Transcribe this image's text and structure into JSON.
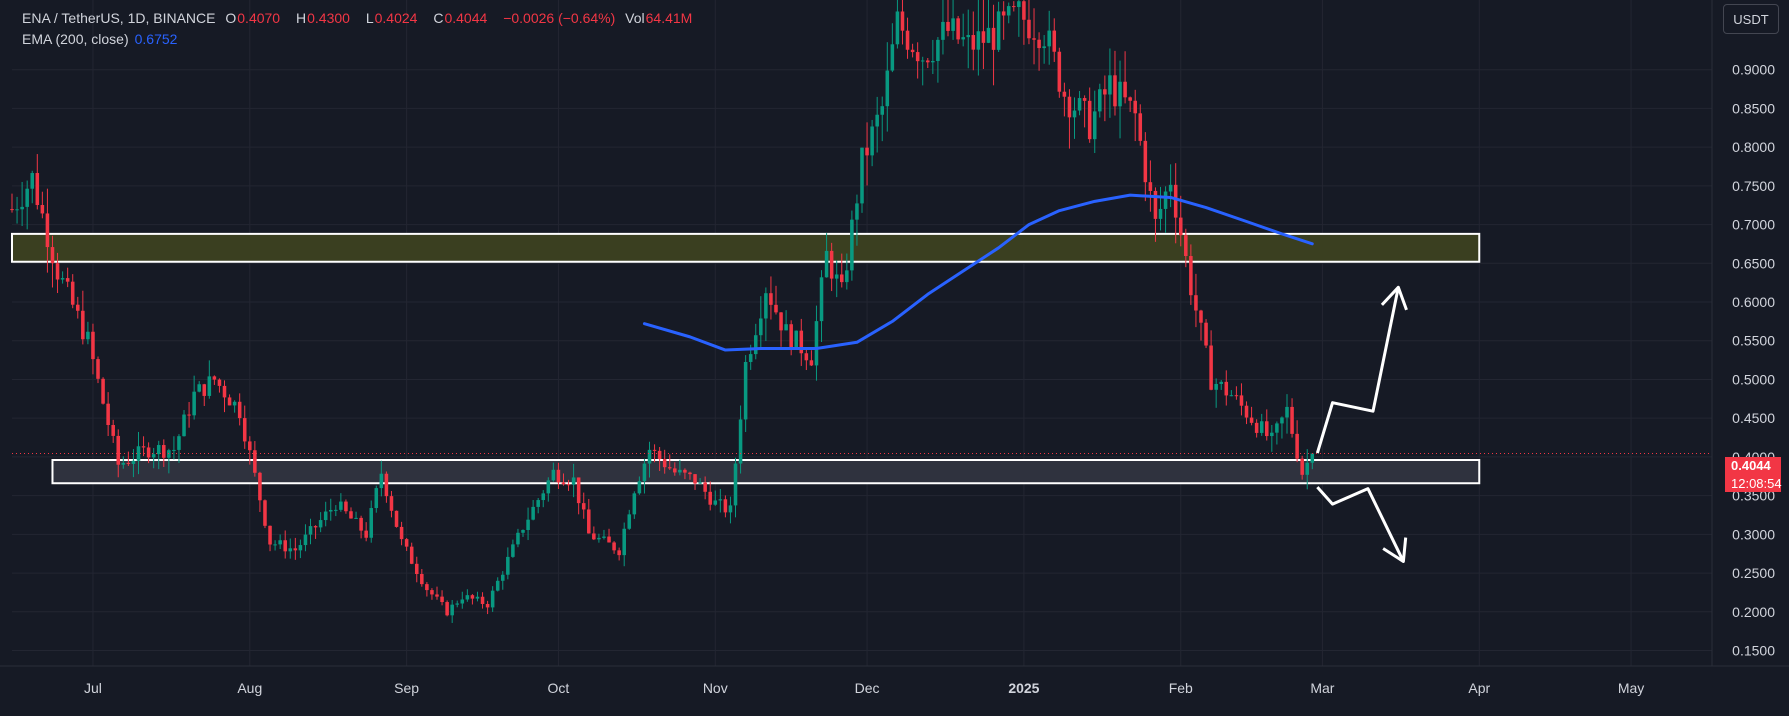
{
  "header": {
    "symbol": "ENA / TetherUS, 1D, BINANCE",
    "o_label": "O",
    "o_val": "0.4070",
    "h_label": "H",
    "h_val": "0.4300",
    "l_label": "L",
    "l_val": "0.4024",
    "c_label": "C",
    "c_val": "0.4044",
    "change": "−0.0026 (−0.64%)",
    "vol_label": "Vol",
    "vol_val": "64.41M",
    "ema_label": "EMA (200, close)",
    "ema_val": "0.6752"
  },
  "currency_button": "USDT",
  "last_price": {
    "price": "0.4044",
    "countdown": "12:08:54"
  },
  "colors": {
    "up": "#089981",
    "down": "#f23645",
    "ema": "#2962ff",
    "bg": "#161a25",
    "grid": "#232632"
  },
  "chart_data": {
    "type": "candlestick",
    "y_ticks": [
      "0.9000",
      "0.8500",
      "0.8000",
      "0.7500",
      "0.7000",
      "0.6500",
      "0.6000",
      "0.5500",
      "0.5000",
      "0.4500",
      "0.4000",
      "0.3500",
      "0.3000",
      "0.2500",
      "0.2000",
      "0.1500"
    ],
    "y_range": [
      0.13,
      0.99
    ],
    "x_ticks": [
      {
        "label": "Jul",
        "date": "2024-07-01",
        "bold": false
      },
      {
        "label": "Aug",
        "date": "2024-08-01",
        "bold": false
      },
      {
        "label": "Sep",
        "date": "2024-09-01",
        "bold": false
      },
      {
        "label": "Oct",
        "date": "2024-10-01",
        "bold": false
      },
      {
        "label": "Nov",
        "date": "2024-11-01",
        "bold": false
      },
      {
        "label": "Dec",
        "date": "2024-12-01",
        "bold": false
      },
      {
        "label": "2025",
        "date": "2025-01-01",
        "bold": true
      },
      {
        "label": "Feb",
        "date": "2025-02-01",
        "bold": false
      },
      {
        "label": "Mar",
        "date": "2025-03-01",
        "bold": false
      },
      {
        "label": "Apr",
        "date": "2025-04-01",
        "bold": false
      },
      {
        "label": "May",
        "date": "2025-05-01",
        "bold": false
      }
    ],
    "x_range": [
      "2024-06-15",
      "2025-05-17"
    ],
    "close_keypoints": [
      [
        "2024-06-15",
        0.72
      ],
      [
        "2024-06-19",
        0.76
      ],
      [
        "2024-06-24",
        0.64
      ],
      [
        "2024-06-30",
        0.55
      ],
      [
        "2024-07-03",
        0.47
      ],
      [
        "2024-07-06",
        0.39
      ],
      [
        "2024-07-12",
        0.41
      ],
      [
        "2024-07-17",
        0.41
      ],
      [
        "2024-07-21",
        0.48
      ],
      [
        "2024-07-25",
        0.5
      ],
      [
        "2024-07-30",
        0.46
      ],
      [
        "2024-08-05",
        0.29
      ],
      [
        "2024-08-10",
        0.28
      ],
      [
        "2024-08-18",
        0.34
      ],
      [
        "2024-08-24",
        0.3
      ],
      [
        "2024-08-27",
        0.38
      ],
      [
        "2024-08-31",
        0.29
      ],
      [
        "2024-09-05",
        0.23
      ],
      [
        "2024-09-09",
        0.2
      ],
      [
        "2024-09-12",
        0.22
      ],
      [
        "2024-09-17",
        0.21
      ],
      [
        "2024-09-24",
        0.31
      ],
      [
        "2024-09-30",
        0.38
      ],
      [
        "2024-10-04",
        0.37
      ],
      [
        "2024-10-07",
        0.3
      ],
      [
        "2024-10-13",
        0.28
      ],
      [
        "2024-10-16",
        0.36
      ],
      [
        "2024-10-19",
        0.41
      ],
      [
        "2024-10-24",
        0.38
      ],
      [
        "2024-10-28",
        0.37
      ],
      [
        "2024-11-01",
        0.34
      ],
      [
        "2024-11-04",
        0.33
      ],
      [
        "2024-11-07",
        0.52
      ],
      [
        "2024-11-11",
        0.62
      ],
      [
        "2024-11-15",
        0.56
      ],
      [
        "2024-11-20",
        0.53
      ],
      [
        "2024-11-23",
        0.66
      ],
      [
        "2024-11-26",
        0.61
      ],
      [
        "2024-11-30",
        0.78
      ],
      [
        "2024-12-04",
        0.85
      ],
      [
        "2024-12-07",
        0.96
      ],
      [
        "2024-12-12",
        0.92
      ],
      [
        "2024-12-17",
        0.95
      ],
      [
        "2024-12-21",
        0.93
      ],
      [
        "2024-12-27",
        0.95
      ],
      [
        "2024-12-31",
        0.97
      ],
      [
        "2025-01-05",
        0.95
      ],
      [
        "2025-01-09",
        0.87
      ],
      [
        "2025-01-14",
        0.83
      ],
      [
        "2025-01-18",
        0.88
      ],
      [
        "2025-01-23",
        0.84
      ],
      [
        "2025-01-27",
        0.7
      ],
      [
        "2025-01-30",
        0.76
      ],
      [
        "2025-02-03",
        0.62
      ],
      [
        "2025-02-07",
        0.5
      ],
      [
        "2025-02-11",
        0.48
      ],
      [
        "2025-02-15",
        0.45
      ],
      [
        "2025-02-19",
        0.42
      ],
      [
        "2025-02-22",
        0.46
      ],
      [
        "2025-02-25",
        0.38
      ],
      [
        "2025-02-27",
        0.4044
      ]
    ],
    "ema_200": [
      [
        "2024-10-18",
        0.572
      ],
      [
        "2024-10-27",
        0.555
      ],
      [
        "2024-11-03",
        0.538
      ],
      [
        "2024-11-10",
        0.54
      ],
      [
        "2024-11-21",
        0.54
      ],
      [
        "2024-11-29",
        0.548
      ],
      [
        "2024-12-06",
        0.575
      ],
      [
        "2024-12-13",
        0.61
      ],
      [
        "2024-12-20",
        0.64
      ],
      [
        "2024-12-27",
        0.67
      ],
      [
        "2025-01-02",
        0.7
      ],
      [
        "2025-01-08",
        0.718
      ],
      [
        "2025-01-15",
        0.73
      ],
      [
        "2025-01-22",
        0.738
      ],
      [
        "2025-01-30",
        0.735
      ],
      [
        "2025-02-06",
        0.722
      ],
      [
        "2025-02-14",
        0.704
      ],
      [
        "2025-02-21",
        0.688
      ],
      [
        "2025-02-27",
        0.6752
      ]
    ],
    "zones": [
      {
        "from": "2024-06-15",
        "to": "2025-04-01",
        "low": 0.652,
        "high": 0.688,
        "fill": "#3a3f20"
      },
      {
        "from": "2024-06-23",
        "to": "2025-04-01",
        "low": 0.366,
        "high": 0.396,
        "fill": "#2f323e"
      }
    ],
    "projection_up": [
      [
        "2025-02-28",
        0.405
      ],
      [
        "2025-03-03",
        0.47
      ],
      [
        "2025-03-11",
        0.459
      ],
      [
        "2025-03-16",
        0.619
      ]
    ],
    "projection_down": [
      [
        "2025-02-28",
        0.361
      ],
      [
        "2025-03-03",
        0.339
      ],
      [
        "2025-03-10",
        0.359
      ],
      [
        "2025-03-17",
        0.265
      ]
    ]
  }
}
